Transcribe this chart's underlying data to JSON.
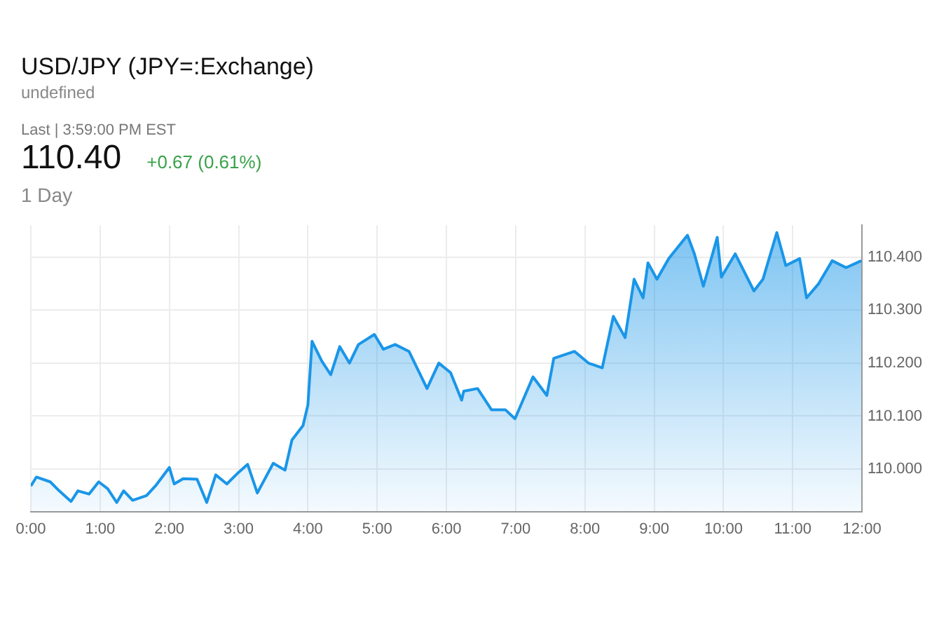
{
  "chart_data": {
    "type": "area",
    "title": "USD/JPY (JPY=:Exchange)",
    "subtitle": "undefined",
    "annotations": [
      "Last | 3:59:00 PM EST",
      "110.40",
      "+0.67 (0.61%)",
      "1 Day"
    ],
    "x": [
      0,
      0.08,
      0.28,
      0.41,
      0.58,
      0.68,
      0.84,
      0.98,
      1.11,
      1.24,
      1.34,
      1.47,
      1.67,
      1.81,
      2.0,
      2.07,
      2.2,
      2.4,
      2.54,
      2.67,
      2.83,
      3.0,
      3.13,
      3.27,
      3.5,
      3.67,
      3.77,
      3.93,
      4.0,
      4.06,
      4.2,
      4.33,
      4.46,
      4.6,
      4.73,
      4.96,
      5.09,
      5.26,
      5.46,
      5.72,
      5.89,
      6.06,
      6.22,
      6.25,
      6.45,
      6.65,
      6.85,
      6.99,
      7.25,
      7.45,
      7.55,
      7.85,
      8.05,
      8.25,
      8.41,
      8.58,
      8.71,
      8.84,
      8.91,
      9.04,
      9.21,
      9.48,
      9.58,
      9.71,
      9.91,
      9.97,
      10.17,
      10.44,
      10.57,
      10.77,
      10.9,
      11.1,
      11.2,
      11.37,
      11.57,
      11.77,
      11.99
    ],
    "series": [
      {
        "color": "#1a96e8",
        "values": [
          109.968,
          109.985,
          109.976,
          109.959,
          109.939,
          109.959,
          109.953,
          109.976,
          109.963,
          109.937,
          109.959,
          109.941,
          109.95,
          109.97,
          110.003,
          109.972,
          109.982,
          109.981,
          109.937,
          109.989,
          109.972,
          109.994,
          110.009,
          109.955,
          110.011,
          109.998,
          110.055,
          110.082,
          110.121,
          110.241,
          110.204,
          110.178,
          110.231,
          110.2,
          110.235,
          110.254,
          110.226,
          110.235,
          110.222,
          110.152,
          110.2,
          110.182,
          110.13,
          110.147,
          110.152,
          110.112,
          110.112,
          110.095,
          110.174,
          110.139,
          110.209,
          110.222,
          110.2,
          110.191,
          110.288,
          110.248,
          110.358,
          110.323,
          110.389,
          110.358,
          110.397,
          110.441,
          110.406,
          110.345,
          110.437,
          110.362,
          110.406,
          110.336,
          110.358,
          110.446,
          110.384,
          110.397,
          110.323,
          110.349,
          110.393,
          110.38,
          110.393
        ]
      }
    ],
    "xlim": [
      0,
      12
    ],
    "xticks": [
      {
        "value": 0,
        "label": "0:00"
      },
      {
        "value": 1,
        "label": "1:00"
      },
      {
        "value": 2,
        "label": "2:00"
      },
      {
        "value": 3,
        "label": "3:00"
      },
      {
        "value": 4,
        "label": "4:00"
      },
      {
        "value": 5,
        "label": "5:00"
      },
      {
        "value": 6,
        "label": "6:00"
      },
      {
        "value": 7,
        "label": "7:00"
      },
      {
        "value": 8,
        "label": "8:00"
      },
      {
        "value": 9,
        "label": "9:00"
      },
      {
        "value": 10,
        "label": "10:00"
      },
      {
        "value": 11,
        "label": "11:00"
      },
      {
        "value": 12,
        "label": "12:00"
      }
    ],
    "ylim": [
      109.92,
      110.46
    ],
    "yticks": [
      {
        "value": 110,
        "label": "110.000"
      },
      {
        "value": 110.1,
        "label": "110.100"
      },
      {
        "value": 110.2,
        "label": "110.200"
      },
      {
        "value": 110.3,
        "label": "110.300"
      },
      {
        "value": 110.4,
        "label": "110.400"
      }
    ],
    "grid": true,
    "legend": false,
    "marker": "none",
    "line_style": "solid"
  }
}
